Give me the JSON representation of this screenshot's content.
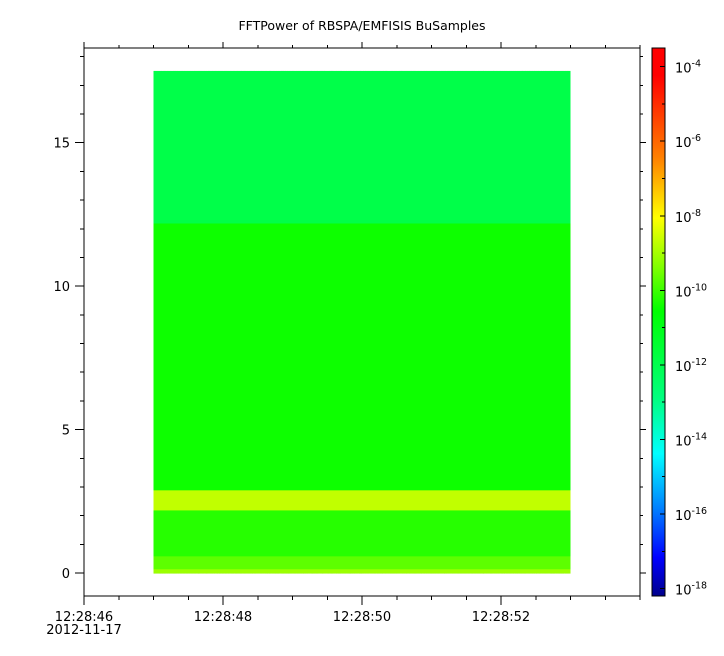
{
  "chart_data": {
    "type": "heatmap",
    "title": "FFTPower of RBSPA/EMFISIS  BuSamples",
    "x": {
      "range": [
        "12:28:46",
        "12:28:54"
      ],
      "ticks": [
        {
          "t": 46,
          "label": "12:28:46",
          "sublabel": "2012-11-17"
        },
        {
          "t": 48,
          "label": "12:28:48"
        },
        {
          "t": 50,
          "label": "12:28:50"
        },
        {
          "t": 52,
          "label": "12:28:52"
        }
      ],
      "minor_ticks": [
        46,
        46.5,
        47,
        47.5,
        48,
        48.5,
        49,
        49.5,
        50,
        50.5,
        51,
        51.5,
        52,
        52.5,
        53,
        53.5,
        54
      ],
      "xlabel": ""
    },
    "y": {
      "range": [
        -0.8,
        18.3
      ],
      "ticks": [
        {
          "v": 0,
          "label": "0"
        },
        {
          "v": 5,
          "label": "5"
        },
        {
          "v": 10,
          "label": "10"
        },
        {
          "v": 15,
          "label": "15"
        }
      ],
      "minor_ticks": [
        0,
        1,
        2,
        3,
        4,
        5,
        6,
        7,
        8,
        9,
        10,
        11,
        12,
        13,
        14,
        15,
        16,
        17,
        18
      ],
      "ylabel": ""
    },
    "data_extent": {
      "t_start": 47,
      "t_end": 53,
      "y_min": 0,
      "y_max": 17.5
    },
    "bands": [
      {
        "y_from": 0,
        "y_to": 0.15,
        "log10_power": -9.1
      },
      {
        "y_from": 0.15,
        "y_to": 0.6,
        "log10_power": -9.7
      },
      {
        "y_from": 0.6,
        "y_to": 2.2,
        "log10_power": -10.2
      },
      {
        "y_from": 2.2,
        "y_to": 2.9,
        "log10_power": -8.7
      },
      {
        "y_from": 2.9,
        "y_to": 12.2,
        "log10_power": -10.4
      },
      {
        "y_from": 12.2,
        "y_to": 17.5,
        "log10_power": -11.9
      }
    ],
    "colorbar": {
      "scale": "log",
      "range": [
        "1e-18",
        "3e-4"
      ],
      "ticks": [
        {
          "exp": -4,
          "base": "10",
          "sup": "-4"
        },
        {
          "exp": -6,
          "base": "10",
          "sup": "-6"
        },
        {
          "exp": -8,
          "base": "10",
          "sup": "-8"
        },
        {
          "exp": -10,
          "base": "10",
          "sup": "-10"
        },
        {
          "exp": -12,
          "base": "10",
          "sup": "-12"
        },
        {
          "exp": -14,
          "base": "10",
          "sup": "-14"
        },
        {
          "exp": -16,
          "base": "10",
          "sup": "-16"
        },
        {
          "exp": -18,
          "base": "10",
          "sup": "-18"
        }
      ],
      "colormap": [
        "#00008b",
        "#0000ff",
        "#0080ff",
        "#00ffff",
        "#00ff80",
        "#00ff00",
        "#80ff00",
        "#ffff00",
        "#ff8000",
        "#ff0000"
      ]
    },
    "grid": false,
    "legend": "none"
  }
}
